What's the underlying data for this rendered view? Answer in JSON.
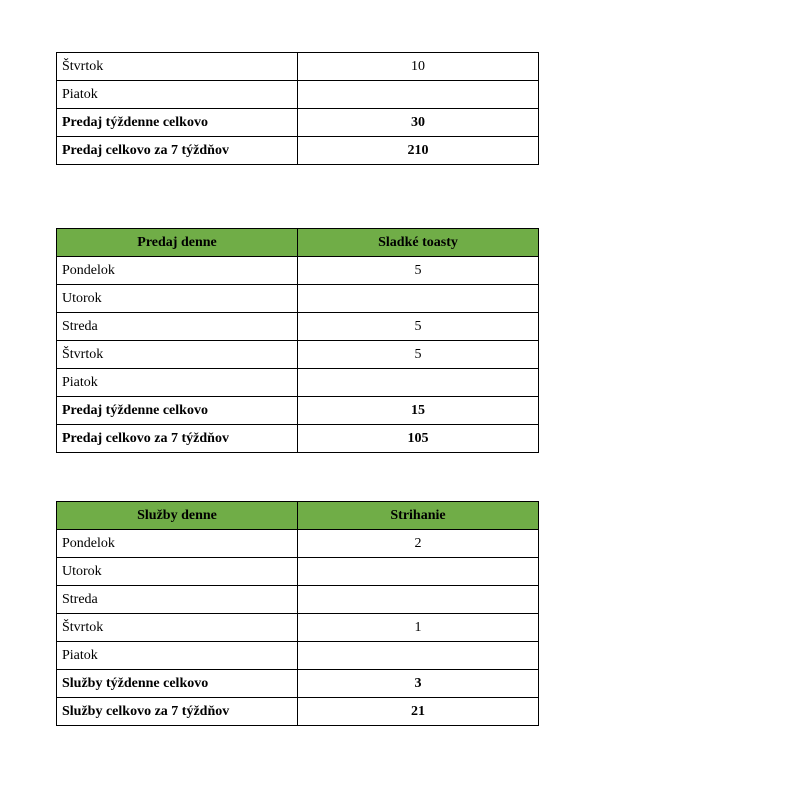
{
  "tables": [
    {
      "header": null,
      "rows": [
        {
          "label": "Štvrtok",
          "value": "10",
          "bold": false
        },
        {
          "label": "Piatok",
          "value": "",
          "bold": false
        },
        {
          "label": "Predaj týždenne celkovo",
          "value": "30",
          "bold": true
        },
        {
          "label": "Predaj celkovo za 7 týždňov",
          "value": "210",
          "bold": true
        }
      ]
    },
    {
      "header": [
        "Predaj denne",
        "Sladké toasty"
      ],
      "rows": [
        {
          "label": "Pondelok",
          "value": "5",
          "bold": false
        },
        {
          "label": "Utorok",
          "value": "",
          "bold": false
        },
        {
          "label": "Streda",
          "value": "5",
          "bold": false
        },
        {
          "label": "Štvrtok",
          "value": "5",
          "bold": false
        },
        {
          "label": "Piatok",
          "value": "",
          "bold": false
        },
        {
          "label": "Predaj týždenne celkovo",
          "value": "15",
          "bold": true
        },
        {
          "label": "Predaj celkovo za 7 týždňov",
          "value": "105",
          "bold": true
        }
      ]
    },
    {
      "header": [
        "Služby denne",
        "Strihanie"
      ],
      "rows": [
        {
          "label": "Pondelok",
          "value": "2",
          "bold": false
        },
        {
          "label": "Utorok",
          "value": "",
          "bold": false
        },
        {
          "label": "Streda",
          "value": "",
          "bold": false
        },
        {
          "label": "Štvrtok",
          "value": "1",
          "bold": false
        },
        {
          "label": "Piatok",
          "value": "",
          "bold": false
        },
        {
          "label": "Služby týždenne celkovo",
          "value": "3",
          "bold": true
        },
        {
          "label": "Služby celkovo za 7 týždňov",
          "value": "21",
          "bold": true
        }
      ]
    }
  ],
  "colors": {
    "header_bg": "#70ad47"
  }
}
